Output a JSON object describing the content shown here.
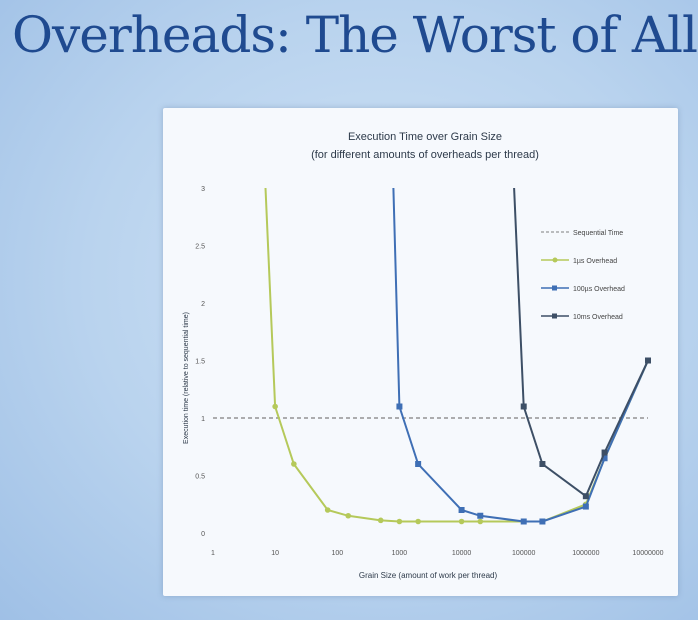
{
  "slide": {
    "title": "Overheads: The Worst of All?"
  },
  "chart_data": {
    "type": "line",
    "title": "Execution Time over Grain Size",
    "subtitle": "(for different amounts of overheads per thread)",
    "xlabel": "Grain Size (amount of work per thread)",
    "ylabel": "Execution time (relative to sequential time)",
    "xscale": "log",
    "xlim": [
      1,
      10000000
    ],
    "ylim": [
      0,
      3
    ],
    "xticks": [
      "1",
      "10",
      "100",
      "1000",
      "10000",
      "100000",
      "1000000",
      "10000000"
    ],
    "yticks": [
      "0",
      "0.5",
      "1",
      "1.5",
      "2",
      "2.5",
      "3"
    ],
    "grid": false,
    "legend_position": "right",
    "series": [
      {
        "name": "Sequential Time",
        "color": "#7f7f7f",
        "style": "dashed",
        "x": [
          1,
          10000000
        ],
        "y": [
          1,
          1
        ]
      },
      {
        "name": "1µs Overhead",
        "color": "#b5c95a",
        "marker": "circle",
        "x": [
          7,
          10,
          20,
          70,
          150,
          500,
          1000,
          2000,
          10000,
          20000,
          100000,
          200000,
          1000000,
          2000000,
          10000000
        ],
        "y": [
          3.0,
          1.1,
          0.6,
          0.2,
          0.15,
          0.11,
          0.1,
          0.1,
          0.1,
          0.1,
          0.1,
          0.1,
          0.25,
          0.65,
          1.5
        ]
      },
      {
        "name": "100µs Overhead",
        "color": "#3f6fb5",
        "marker": "square",
        "x": [
          800,
          1000,
          2000,
          10000,
          20000,
          100000,
          200000,
          1000000,
          2000000,
          10000000
        ],
        "y": [
          3.0,
          1.1,
          0.6,
          0.2,
          0.15,
          0.1,
          0.1,
          0.23,
          0.65,
          1.5
        ]
      },
      {
        "name": "10ms Overhead",
        "color": "#3d4f66",
        "marker": "square",
        "x": [
          70000,
          100000,
          200000,
          1000000,
          2000000,
          10000000
        ],
        "y": [
          3.0,
          1.1,
          0.6,
          0.32,
          0.7,
          1.5
        ]
      }
    ]
  }
}
